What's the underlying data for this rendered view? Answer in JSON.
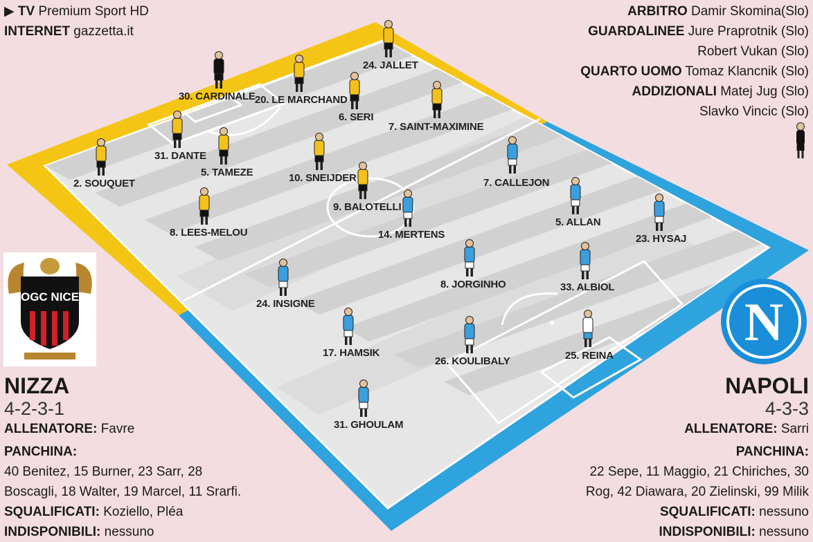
{
  "broadcast": {
    "tv_label": "TV",
    "tv_value": "Premium Sport HD",
    "internet_label": "INTERNET",
    "internet_value": "gazzetta.it"
  },
  "officials": [
    {
      "label": "ARBITRO",
      "value": "Damir Skomina(Slo)"
    },
    {
      "label": "GUARDALINEE",
      "value": "Jure Praprotnik (Slo)"
    },
    {
      "label": "",
      "value": "Robert Vukan (Slo)"
    },
    {
      "label": "QUARTO UOMO",
      "value": "Tomaz Klancnik (Slo)"
    },
    {
      "label": "ADDIZIONALI",
      "value": "Matej Jug (Slo)"
    },
    {
      "label": "",
      "value": "Slavko Vincic (Slo)"
    }
  ],
  "home": {
    "logo_text": "OGC NICE",
    "name": "NIZZA",
    "formation": "4-2-3-1",
    "coach_label": "ALLENATORE:",
    "coach": "Favre",
    "bench_label": "PANCHINA:",
    "bench_line1": "40 Benitez, 15 Burner, 23 Sarr, 28",
    "bench_line2": "Boscagli, 18 Walter, 19 Marcel, 11 Srarfi.",
    "suspended_label": "SQUALIFICATI:",
    "suspended": "Koziello, Pléa",
    "unavailable_label": "INDISPONIBILI:",
    "unavailable": "nessuno",
    "colors": {
      "shirt": "#f3c11a",
      "shorts": "#111111"
    },
    "players": [
      "30. CARDINALE",
      "20. LE MARCHAND",
      "24. JALLET",
      "6. SERI",
      "7. SAINT-MAXIMINE",
      "31. DANTE",
      "2. SOUQUET",
      "5. TAMEZE",
      "10. SNEIJDER",
      "9. BALOTELLI",
      "8. LEES-MELOU"
    ]
  },
  "away": {
    "logo_text": "N",
    "name": "NAPOLI",
    "formation": "4-3-3",
    "coach_label": "ALLENATORE:",
    "coach": "Sarri",
    "bench_label": "PANCHINA:",
    "bench_line1": "22 Sepe, 11 Maggio, 21 Chiriches, 30",
    "bench_line2": "Rog, 42 Diawara, 20 Zielinski, 99 Milik",
    "suspended_label": "SQUALIFICATI:",
    "suspended": "nessuno",
    "unavailable_label": "INDISPONIBILI:",
    "unavailable": "nessuno",
    "colors": {
      "shirt": "#3a9fdc",
      "shorts": "#ffffff"
    },
    "players": [
      "7. CALLEJON",
      "14. MERTENS",
      "5. ALLAN",
      "23. HYSAJ",
      "8. JORGINHO",
      "33. ALBIOL",
      "24. INSIGNE",
      "17. HAMSIK",
      "26. KOULIBALY",
      "25. REINA",
      "31. GHOULAM"
    ]
  },
  "colors": {
    "home_border": "#f5c515",
    "away_border": "#2fa3dd",
    "pitch_light": "#e6e6e6",
    "pitch_dark": "#c9c9c9",
    "background": "#f3dde0"
  }
}
